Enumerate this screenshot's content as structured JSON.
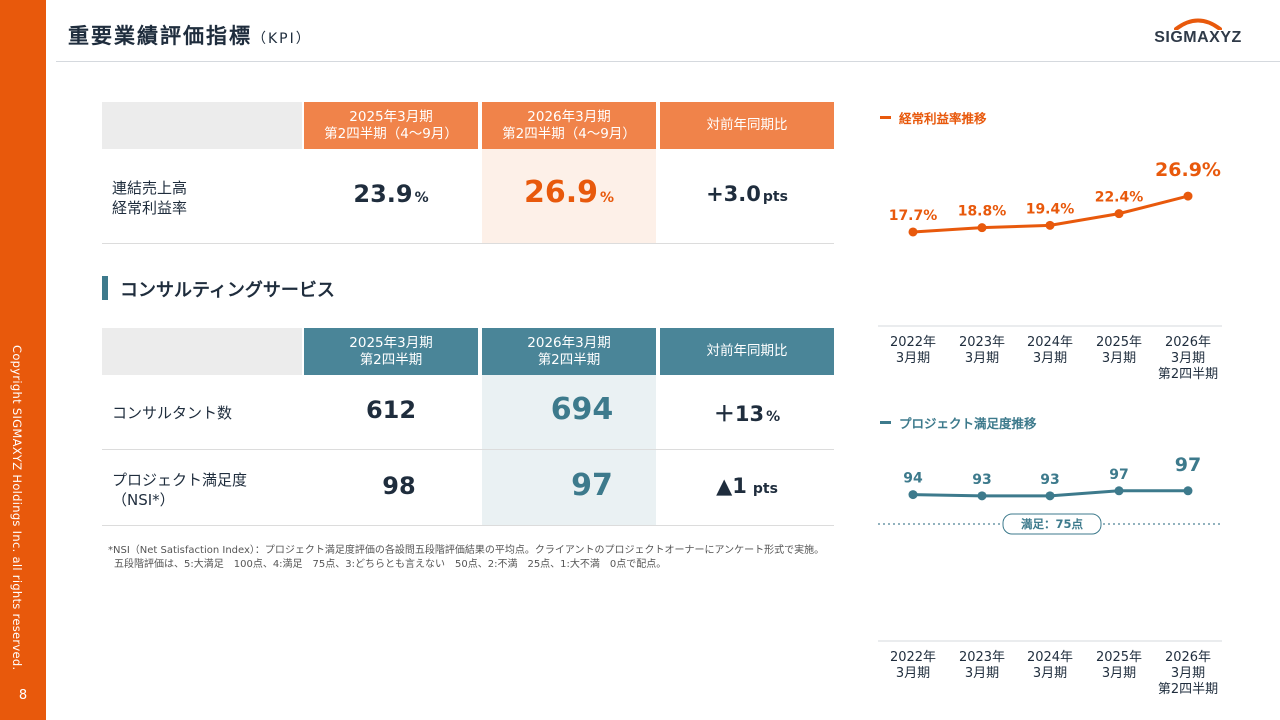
{
  "sidebar": {
    "copyright": "Copyright SIGMAXYZ Holdings Inc. all rights reserved.",
    "page_number": "8"
  },
  "header": {
    "title": "重要業績評価指標",
    "title_sub": "（KPI）",
    "logo": "SIGMAXYZ"
  },
  "colors": {
    "orange": "#e8590c",
    "orange_header": "#f0834a",
    "teal": "#3d7a8c",
    "teal_header": "#4a8598"
  },
  "kpi_table": {
    "col1": [
      "2025年3月期",
      "第2四半期（4～9月）"
    ],
    "col2": [
      "2026年3月期",
      "第2四半期（4～9月）"
    ],
    "col3": "対前年同期比",
    "row": {
      "label": [
        "連結売上高",
        "経常利益率"
      ],
      "v2025": "23.9",
      "v2025_unit": "%",
      "v2026": "26.9",
      "v2026_unit": "%",
      "yoy": "+3.0",
      "yoy_unit": "pts"
    }
  },
  "section": {
    "title": "コンサルティングサービス"
  },
  "consulting_table": {
    "col1": [
      "2025年3月期",
      "第2四半期"
    ],
    "col2": [
      "2026年3月期",
      "第2四半期"
    ],
    "col3": "対前年同期比",
    "rows": [
      {
        "label": [
          "コンサルタント数"
        ],
        "v2025": "612",
        "v2026": "694",
        "yoy": "＋13",
        "yoy_unit": "%"
      },
      {
        "label": [
          "プロジェクト満足度",
          "（NSI*）"
        ],
        "v2025": "98",
        "v2026": "97",
        "yoy": "▲1",
        "yoy_unit": "pts"
      }
    ]
  },
  "footnote": [
    "*NSI（Net Satisfaction Index）：プロジェクト満足度評価の各設問五段階評価結果の平均点。クライアントのプロジェクトオーナーにアンケート形式で実施。",
    "五段階評価は、5:大満足　100点、4:満足　75点、3:どちらとも言えない　50点、2:不満　25点、1:大不満　0点で配点。"
  ],
  "chart_data": [
    {
      "type": "line",
      "title": "経常利益率推移",
      "categories": [
        [
          "2022年",
          "3月期"
        ],
        [
          "2023年",
          "3月期"
        ],
        [
          "2024年",
          "3月期"
        ],
        [
          "2025年",
          "3月期"
        ],
        [
          "2026年",
          "3月期",
          "第2四半期"
        ]
      ],
      "values": [
        17.7,
        18.8,
        19.4,
        22.4,
        26.9
      ],
      "labels": [
        "17.7%",
        "18.8%",
        "19.4%",
        "22.4%",
        "26.9%"
      ],
      "ylim": [
        10,
        30
      ],
      "color": "#e8590c"
    },
    {
      "type": "line",
      "title": "プロジェクト満足度推移",
      "categories": [
        [
          "2022年",
          "3月期"
        ],
        [
          "2023年",
          "3月期"
        ],
        [
          "2024年",
          "3月期"
        ],
        [
          "2025年",
          "3月期"
        ],
        [
          "2026年",
          "3月期",
          "第2四半期"
        ]
      ],
      "values": [
        94,
        93,
        93,
        97,
        97
      ],
      "labels": [
        "94",
        "93",
        "93",
        "97",
        "97"
      ],
      "ylim": [
        85,
        100
      ],
      "reference_line": {
        "value": 75,
        "label": "満足：75点"
      },
      "color": "#3d7a8c"
    }
  ]
}
